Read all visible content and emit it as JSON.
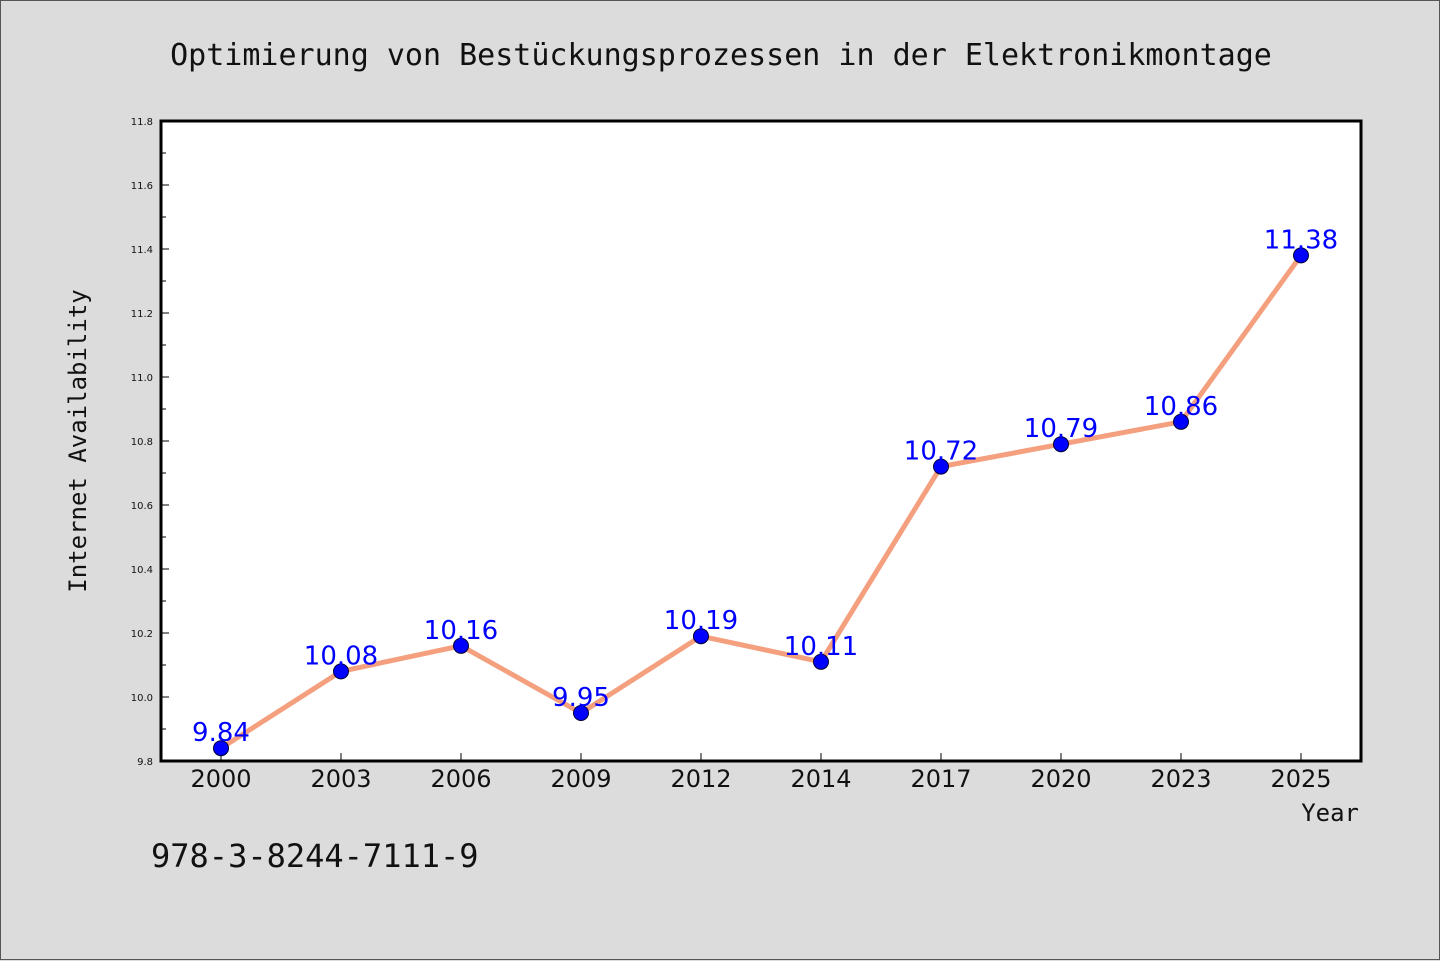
{
  "page": {
    "footer_text": "978-3-8244-7111-9"
  },
  "colors": {
    "background": "#dcdcdc",
    "plot_background": "#ffffff",
    "line": "#f4a07f",
    "marker": "#0000ff",
    "data_label": "#0000ff",
    "axes": "#000000"
  },
  "chart_data": {
    "type": "line",
    "title": "Optimierung von Bestückungsprozessen in der Elektronikmontage",
    "xlabel": "Year",
    "ylabel": "Internet Availability",
    "categories": [
      "2000",
      "2003",
      "2006",
      "2009",
      "2012",
      "2014",
      "2017",
      "2020",
      "2023",
      "2025"
    ],
    "series": [
      {
        "values": [
          9.84,
          10.08,
          10.16,
          9.95,
          10.19,
          10.11,
          10.72,
          10.79,
          10.86,
          11.38
        ],
        "data_labels": [
          "9.84",
          "10.08",
          "10.16",
          "9.95",
          "10.19",
          "10.11",
          "10.72",
          "10.79",
          "10.86",
          "11.38"
        ]
      }
    ],
    "ylim": [
      9.8,
      11.8
    ],
    "yticks": [
      "9.8",
      "10.0",
      "10.2",
      "10.4",
      "10.6",
      "10.8",
      "11.0",
      "11.2",
      "11.4",
      "11.6",
      "11.8"
    ],
    "grid": false,
    "legend": "none"
  }
}
